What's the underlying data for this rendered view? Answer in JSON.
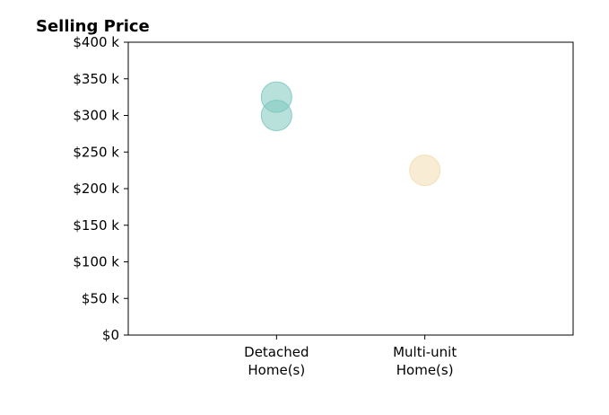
{
  "chart_data": {
    "type": "scatter",
    "title": "Selling Price",
    "xlabel": "",
    "ylabel": "",
    "categories": [
      "Detached\nHome(s)",
      "Multi-unit\nHome(s)"
    ],
    "xlim": [
      -1,
      2
    ],
    "ylim": [
      0,
      400000
    ],
    "yticks": [
      0,
      50000,
      100000,
      150000,
      200000,
      250000,
      300000,
      350000,
      400000
    ],
    "ytick_labels": [
      "$0",
      "$50 k",
      "$100 k",
      "$150 k",
      "$200 k",
      "$250 k",
      "$300 k",
      "$350 k",
      "$400 k"
    ],
    "grid": false,
    "points": [
      {
        "category": "Detached\nHome(s)",
        "value": 325000,
        "color": "#7ec9bf"
      },
      {
        "category": "Detached\nHome(s)",
        "value": 300000,
        "color": "#7ec9bf"
      },
      {
        "category": "Multi-unit\nHome(s)",
        "value": 225000,
        "color": "#f3ddb0"
      }
    ]
  }
}
